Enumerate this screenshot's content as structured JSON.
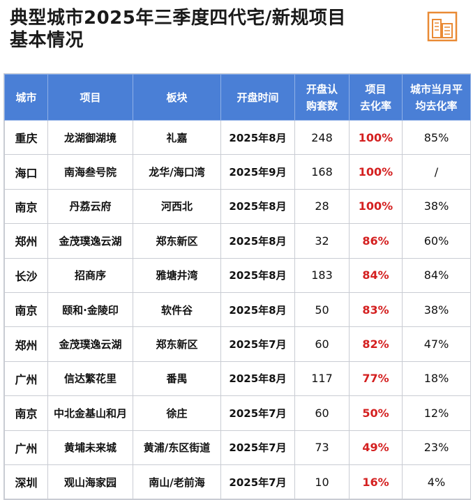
{
  "header": {
    "title_line1": "典型城市2025年三季度四代宅/新规项目",
    "title_line2": "基本情况",
    "logo_icon": "building-icon",
    "accent_color": "#e98a35"
  },
  "table": {
    "header_color": "#4a7fd6",
    "rate_color": "#d42020",
    "columns": [
      {
        "line1": "城市",
        "line2": ""
      },
      {
        "line1": "项目",
        "line2": ""
      },
      {
        "line1": "板块",
        "line2": ""
      },
      {
        "line1": "开盘时间",
        "line2": ""
      },
      {
        "line1": "开盘认",
        "line2": "购套数"
      },
      {
        "line1": "项目",
        "line2": "去化率"
      },
      {
        "line1": "城市当月平",
        "line2": "均去化率"
      }
    ],
    "rows": [
      {
        "city": "重庆",
        "project": "龙湖御湖境",
        "area": "礼嘉",
        "date": "2025年8月",
        "units": "248",
        "rate": "100%",
        "avg": "85%"
      },
      {
        "city": "海口",
        "project": "南海叁号院",
        "area": "龙华/海口湾",
        "date": "2025年9月",
        "units": "168",
        "rate": "100%",
        "avg": "/"
      },
      {
        "city": "南京",
        "project": "丹荔云府",
        "area": "河西北",
        "date": "2025年8月",
        "units": "28",
        "rate": "100%",
        "avg": "38%"
      },
      {
        "city": "郑州",
        "project": "金茂璞逸云湖",
        "area": "郑东新区",
        "date": "2025年8月",
        "units": "32",
        "rate": "86%",
        "avg": "60%"
      },
      {
        "city": "长沙",
        "project": "招商序",
        "area": "雅塘井湾",
        "date": "2025年8月",
        "units": "183",
        "rate": "84%",
        "avg": "84%"
      },
      {
        "city": "南京",
        "project": "颐和·金陵印",
        "area": "软件谷",
        "date": "2025年8月",
        "units": "50",
        "rate": "83%",
        "avg": "38%"
      },
      {
        "city": "郑州",
        "project": "金茂璞逸云湖",
        "area": "郑东新区",
        "date": "2025年7月",
        "units": "60",
        "rate": "82%",
        "avg": "47%"
      },
      {
        "city": "广州",
        "project": "信达繁花里",
        "area": "番禺",
        "date": "2025年8月",
        "units": "117",
        "rate": "77%",
        "avg": "18%"
      },
      {
        "city": "南京",
        "project": "中北金基山和月",
        "area": "徐庄",
        "date": "2025年7月",
        "units": "60",
        "rate": "50%",
        "avg": "12%"
      },
      {
        "city": "广州",
        "project": "黄埔未来城",
        "area": "黄浦/东区街道",
        "date": "2025年7月",
        "units": "73",
        "rate": "49%",
        "avg": "23%"
      },
      {
        "city": "深圳",
        "project": "观山海家园",
        "area": "南山/老前海",
        "date": "2025年7月",
        "units": "10",
        "rate": "16%",
        "avg": "4%"
      }
    ]
  }
}
